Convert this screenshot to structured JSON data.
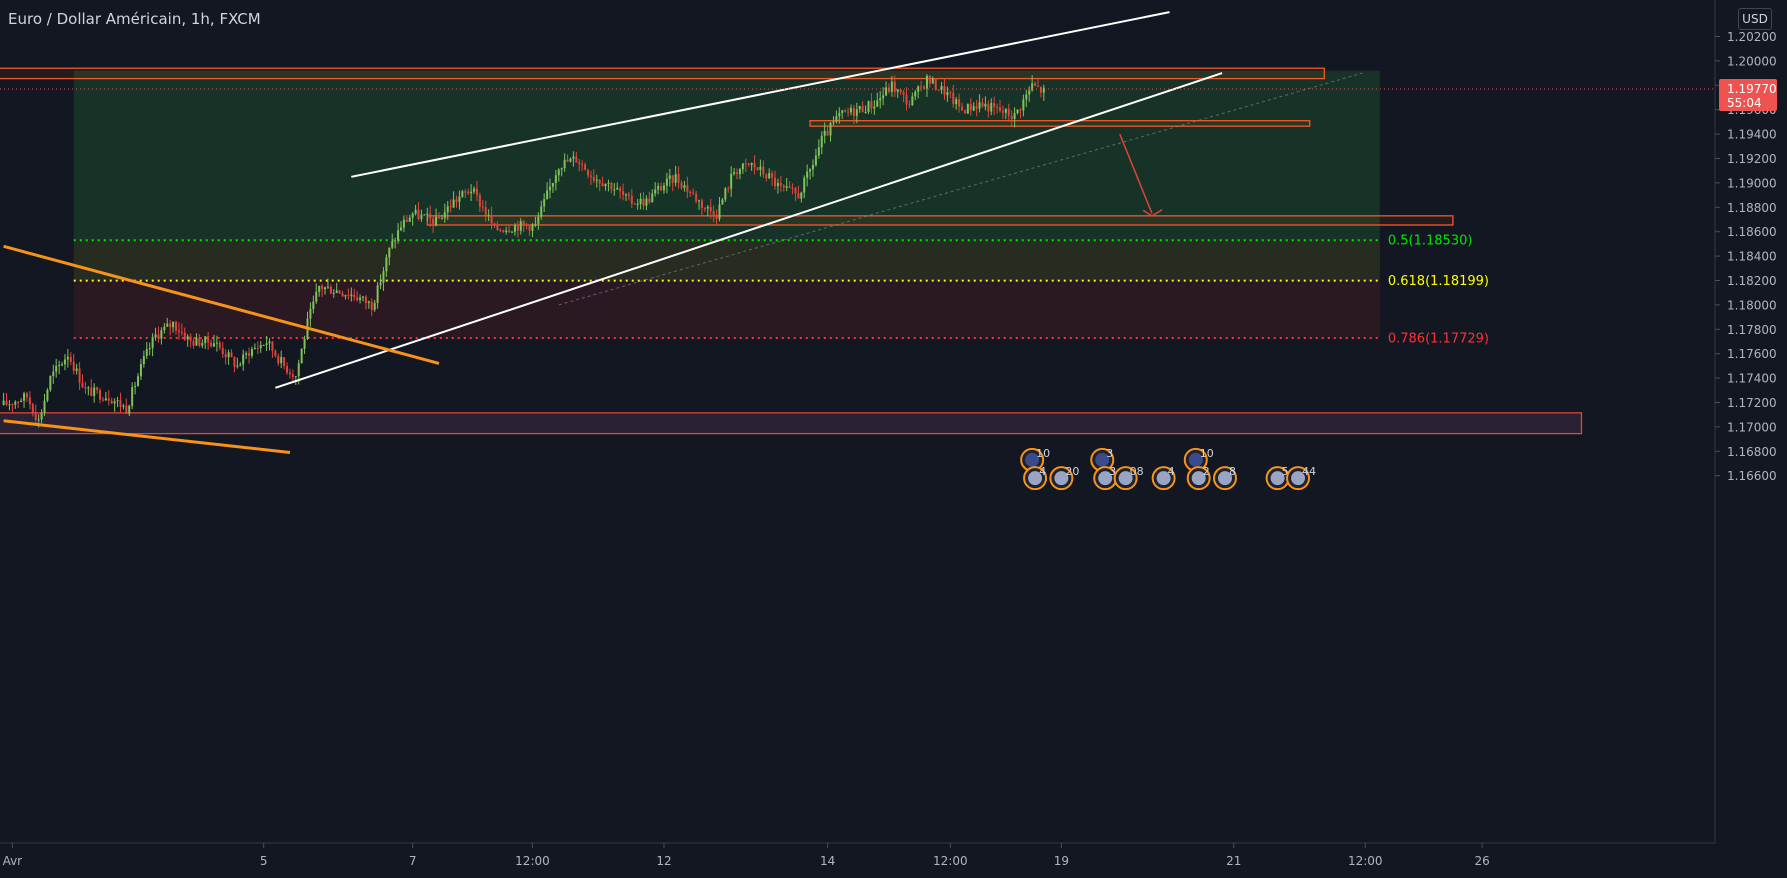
{
  "header": {
    "title": "Euro / Dollar Américain, 1h, FXCM",
    "currency": "USD"
  },
  "colors": {
    "bg": "#131722",
    "up": "#26a69a",
    "down": "#ef5350",
    "bull": "#7fc35a",
    "bear": "#e0453a"
  },
  "price_tag": {
    "value": "1.19770",
    "countdown": "55:04"
  },
  "chart_data": {
    "type": "candlestick",
    "title": "Euro / Dollar Américain, 1h, FXCM",
    "ylim": [
      1.1645,
      1.204
    ],
    "y_ticks": [
      "1.20200",
      "1.20000",
      "1.19800",
      "1.19600",
      "1.19400",
      "1.19200",
      "1.19000",
      "1.18800",
      "1.18600",
      "1.18400",
      "1.18200",
      "1.18000",
      "1.17800",
      "1.17600",
      "1.17400",
      "1.17200",
      "1.17000",
      "1.16800",
      "1.16600"
    ],
    "y_tick_values": [
      1.202,
      1.2,
      1.198,
      1.196,
      1.194,
      1.192,
      1.19,
      1.188,
      1.186,
      1.184,
      1.182,
      1.18,
      1.178,
      1.176,
      1.174,
      1.172,
      1.17,
      1.168,
      1.166
    ],
    "x_ticks": [
      "Avr",
      "5",
      "7",
      "12:00",
      "12",
      "14",
      "12:00",
      "19",
      "21",
      "12:00",
      "26"
    ],
    "x_tick_index": [
      3,
      89,
      140,
      181,
      226,
      282,
      324,
      362,
      421,
      466,
      506
    ],
    "close_path": [
      [
        0,
        1.1718
      ],
      [
        8,
        1.1725
      ],
      [
        12,
        1.1705
      ],
      [
        16,
        1.174
      ],
      [
        22,
        1.176
      ],
      [
        28,
        1.173
      ],
      [
        36,
        1.1725
      ],
      [
        42,
        1.1715
      ],
      [
        48,
        1.1755
      ],
      [
        52,
        1.1775
      ],
      [
        58,
        1.1785
      ],
      [
        64,
        1.177
      ],
      [
        72,
        1.177
      ],
      [
        76,
        1.176
      ],
      [
        80,
        1.175
      ],
      [
        84,
        1.1762
      ],
      [
        90,
        1.177
      ],
      [
        96,
        1.175
      ],
      [
        100,
        1.1742
      ],
      [
        104,
        1.1785
      ],
      [
        108,
        1.1815
      ],
      [
        114,
        1.1812
      ],
      [
        120,
        1.1808
      ],
      [
        126,
        1.18
      ],
      [
        128,
        1.1812
      ],
      [
        132,
        1.1845
      ],
      [
        136,
        1.1865
      ],
      [
        140,
        1.1875
      ],
      [
        148,
        1.1868
      ],
      [
        154,
        1.1885
      ],
      [
        160,
        1.1895
      ],
      [
        164,
        1.188
      ],
      [
        168,
        1.1862
      ],
      [
        176,
        1.1865
      ],
      [
        182,
        1.1865
      ],
      [
        186,
        1.189
      ],
      [
        190,
        1.1915
      ],
      [
        196,
        1.192
      ],
      [
        202,
        1.1905
      ],
      [
        208,
        1.1898
      ],
      [
        214,
        1.1885
      ],
      [
        220,
        1.1885
      ],
      [
        224,
        1.1895
      ],
      [
        230,
        1.1905
      ],
      [
        236,
        1.189
      ],
      [
        240,
        1.188
      ],
      [
        244,
        1.1875
      ],
      [
        250,
        1.191
      ],
      [
        256,
        1.1915
      ],
      [
        262,
        1.1905
      ],
      [
        266,
        1.1895
      ],
      [
        272,
        1.189
      ],
      [
        276,
        1.191
      ],
      [
        280,
        1.1935
      ],
      [
        286,
        1.1955
      ],
      [
        292,
        1.196
      ],
      [
        298,
        1.1965
      ],
      [
        304,
        1.198
      ],
      [
        310,
        1.1965
      ],
      [
        316,
        1.1985
      ],
      [
        322,
        1.1975
      ],
      [
        328,
        1.196
      ],
      [
        334,
        1.1965
      ],
      [
        340,
        1.196
      ],
      [
        346,
        1.1955
      ],
      [
        352,
        1.198
      ],
      [
        356,
        1.1975
      ]
    ],
    "zones": [
      {
        "from": 1.19855,
        "to": 1.1994,
        "x_start": -5,
        "x_end": 452
      },
      {
        "from": 1.19465,
        "to": 1.1951,
        "x_start": 276,
        "x_end": 447
      },
      {
        "from": 1.18655,
        "to": 1.1873,
        "x_start": 145,
        "x_end": 496
      },
      {
        "from": 1.16945,
        "to": 1.17115,
        "x_start": -5,
        "x_end": 540
      }
    ],
    "fib_levels": [
      {
        "label": "0.5(1.18530)",
        "price": 1.1853,
        "color": "#00e600"
      },
      {
        "label": "0.618(1.18199)",
        "price": 1.18199,
        "color": "#ffff00"
      },
      {
        "label": "0.786(1.17729)",
        "price": 1.17729,
        "color": "#ff3030"
      }
    ],
    "trend_lines": [
      {
        "p1": [
          119,
          1.1905
        ],
        "p2": [
          399,
          1.204
        ],
        "color": "#ffffff"
      },
      {
        "p1": [
          93,
          1.1732
        ],
        "p2": [
          417,
          1.199
        ],
        "color": "#ffffff"
      },
      {
        "p1": [
          0,
          1.1848
        ],
        "p2": [
          149,
          1.1752
        ],
        "color": "#f7931a"
      },
      {
        "p1": [
          0,
          1.1705
        ],
        "p2": [
          98,
          1.1679
        ],
        "color": "#f7931a"
      }
    ],
    "event_rows": [
      {
        "labels": [
          "10",
          "3",
          "10"
        ],
        "idx": [
          352,
          376,
          408
        ],
        "price": 1.1673
      },
      {
        "labels": [
          "4",
          "20",
          "3",
          "08",
          "4",
          "2",
          "8",
          "5",
          "44"
        ],
        "idx": [
          353,
          362,
          377,
          384,
          397,
          409,
          418,
          436,
          443
        ],
        "price": 1.1658
      }
    ]
  }
}
